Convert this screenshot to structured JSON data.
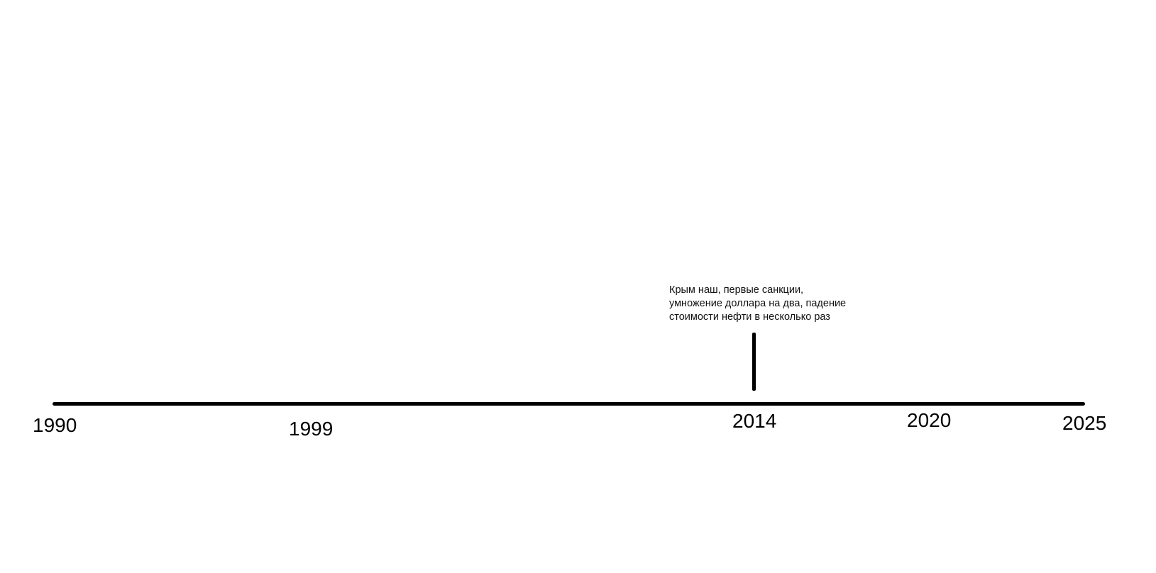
{
  "timeline": {
    "years": [
      "1990",
      "1999",
      "2014",
      "2020",
      "2025"
    ],
    "events": [
      {
        "year": "2014",
        "text_lines": [
          "Крым наш, первые санкции,",
          "умножение доллара на два, падение",
          "стоимости нефти в несколько раз"
        ]
      }
    ]
  },
  "colors": {
    "background": "#ffffff",
    "line": "#000000",
    "text": "#111111"
  }
}
